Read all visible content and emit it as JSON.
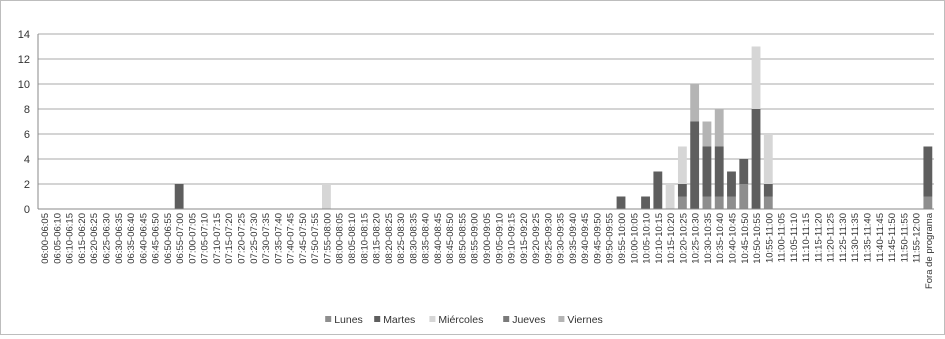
{
  "chart_data": {
    "type": "bar",
    "stacked": true,
    "title": "",
    "xlabel": "",
    "ylabel": "",
    "ylim": [
      0,
      14
    ],
    "yticks": [
      0,
      2,
      4,
      6,
      8,
      10,
      12,
      14
    ],
    "grid": true,
    "legend_position": "bottom",
    "categories": [
      "06:00-06:05",
      "06:05-06:10",
      "06:10-06:15",
      "06:15-06:20",
      "06:20-06:25",
      "06:25-06:30",
      "06:30-06:35",
      "06:35-06:40",
      "06:40-06:45",
      "06:45-06:50",
      "06:50-06:55",
      "06:55-07:00",
      "07:00-07:05",
      "07:05-07:10",
      "07:10-07:15",
      "07:15-07:20",
      "07:20-07:25",
      "07:25-07:30",
      "07:30-07:35",
      "07:35-07:40",
      "07:40-07:45",
      "07:45-07:50",
      "07:50-07:55",
      "07:55-08:00",
      "08:00-08:05",
      "08:05-08:10",
      "08:10-08:15",
      "08:15-08:20",
      "08:20-08:25",
      "08:25-08:30",
      "08:30-08:35",
      "08:35-08:40",
      "08:40-08:45",
      "08:45-08:50",
      "08:50-08:55",
      "08:55-09:00",
      "09:00-09:05",
      "09:05-09:10",
      "09:10-09:15",
      "09:15-09:20",
      "09:20-09:25",
      "09:25-09:30",
      "09:30-09:35",
      "09:35-09:40",
      "09:40-09:45",
      "09:45-09:50",
      "09:50-09:55",
      "09:55-10:00",
      "10:00-10:05",
      "10:05-10:10",
      "10:10-10:15",
      "10:15-10:20",
      "10:20-10:25",
      "10:25-10:30",
      "10:30-10:35",
      "10:35-10:40",
      "10:40-10:45",
      "10:45-10:50",
      "10:50-10:55",
      "10:55-11:00",
      "11:00-11:05",
      "11:05-11:10",
      "11:10-11:15",
      "11:15-11:20",
      "11:20-11:25",
      "11:25-11:30",
      "11:30-11:35",
      "11:35-11:40",
      "11:40-11:45",
      "11:45-11:50",
      "11:50-11:55",
      "11:55-12:00",
      "Fora de programa"
    ],
    "series": [
      {
        "name": "Lunes",
        "color": "#8e8e8e",
        "values": [
          0,
          0,
          0,
          0,
          0,
          0,
          0,
          0,
          0,
          0,
          0,
          0,
          0,
          0,
          0,
          0,
          0,
          0,
          0,
          0,
          0,
          0,
          0,
          0,
          0,
          0,
          0,
          0,
          0,
          0,
          0,
          0,
          0,
          0,
          0,
          0,
          0,
          0,
          0,
          0,
          0,
          0,
          0,
          0,
          0,
          0,
          0,
          0,
          0,
          0,
          0,
          0,
          1,
          0,
          1,
          1,
          1,
          2,
          0,
          1,
          0,
          0,
          0,
          0,
          0,
          0,
          0,
          0,
          0,
          0,
          0,
          0,
          1
        ]
      },
      {
        "name": "Martes",
        "color": "#5e5e5e",
        "values": [
          0,
          0,
          0,
          0,
          0,
          0,
          0,
          0,
          0,
          0,
          0,
          2,
          0,
          0,
          0,
          0,
          0,
          0,
          0,
          0,
          0,
          0,
          0,
          0,
          0,
          0,
          0,
          0,
          0,
          0,
          0,
          0,
          0,
          0,
          0,
          0,
          0,
          0,
          0,
          0,
          0,
          0,
          0,
          0,
          0,
          0,
          0,
          1,
          0,
          1,
          3,
          0,
          1,
          7,
          4,
          4,
          2,
          2,
          8,
          1,
          0,
          0,
          0,
          0,
          0,
          0,
          0,
          0,
          0,
          0,
          0,
          0,
          4
        ]
      },
      {
        "name": "Miércoles",
        "color": "#d6d6d6",
        "values": [
          0,
          0,
          0,
          0,
          0,
          0,
          0,
          0,
          0,
          0,
          0,
          0,
          0,
          0,
          0,
          0,
          0,
          0,
          0,
          0,
          0,
          0,
          0,
          2,
          0,
          0,
          0,
          0,
          0,
          0,
          0,
          0,
          0,
          0,
          0,
          0,
          0,
          0,
          0,
          0,
          0,
          0,
          0,
          0,
          0,
          0,
          0,
          0,
          0,
          0,
          0,
          2,
          3,
          0,
          0,
          0,
          0,
          0,
          5,
          4,
          0,
          0,
          0,
          0,
          0,
          0,
          0,
          0,
          0,
          0,
          0,
          0,
          0
        ]
      },
      {
        "name": "Jueves",
        "color": "#7a7a7a",
        "values": [
          0,
          0,
          0,
          0,
          0,
          0,
          0,
          0,
          0,
          0,
          0,
          0,
          0,
          0,
          0,
          0,
          0,
          0,
          0,
          0,
          0,
          0,
          0,
          0,
          0,
          0,
          0,
          0,
          0,
          0,
          0,
          0,
          0,
          0,
          0,
          0,
          0,
          0,
          0,
          0,
          0,
          0,
          0,
          0,
          0,
          0,
          0,
          0,
          0,
          0,
          0,
          0,
          0,
          0,
          0,
          0,
          0,
          0,
          0,
          0,
          0,
          0,
          0,
          0,
          0,
          0,
          0,
          0,
          0,
          0,
          0,
          0,
          0
        ]
      },
      {
        "name": "Viernes",
        "color": "#b4b4b4",
        "values": [
          0,
          0,
          0,
          0,
          0,
          0,
          0,
          0,
          0,
          0,
          0,
          0,
          0,
          0,
          0,
          0,
          0,
          0,
          0,
          0,
          0,
          0,
          0,
          0,
          0,
          0,
          0,
          0,
          0,
          0,
          0,
          0,
          0,
          0,
          0,
          0,
          0,
          0,
          0,
          0,
          0,
          0,
          0,
          0,
          0,
          0,
          0,
          0,
          0,
          0,
          0,
          0,
          0,
          3,
          2,
          3,
          0,
          0,
          0,
          0,
          0,
          0,
          0,
          0,
          0,
          0,
          0,
          0,
          0,
          0,
          0,
          0,
          0
        ]
      }
    ]
  }
}
